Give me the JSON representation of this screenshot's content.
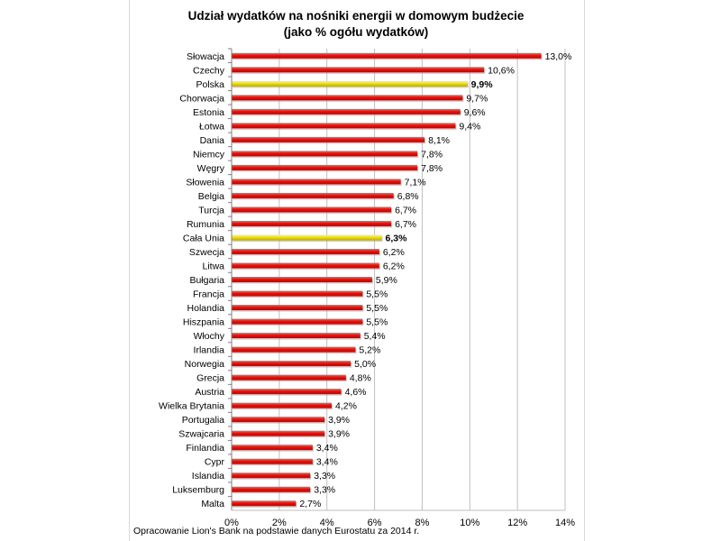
{
  "chart_data": {
    "type": "bar",
    "orientation": "horizontal",
    "title": "Udział wydatków na nośniki energii w domowym budżecie",
    "subtitle": "(jako % ogółu wydatków)",
    "source": "Opracowanie Lion's Bank na podstawie danych Eurostatu za 2014 r.",
    "categories": [
      "Słowacja",
      "Czechy",
      "Polska",
      "Chorwacja",
      "Estonia",
      "Łotwa",
      "Dania",
      "Niemcy",
      "Węgry",
      "Słowenia",
      "Belgia",
      "Turcja",
      "Rumunia",
      "Cała Unia",
      "Szwecja",
      "Litwa",
      "Bułgaria",
      "Francja",
      "Holandia",
      "Hiszpania",
      "Włochy",
      "Irlandia",
      "Norwegia",
      "Grecja",
      "Austria",
      "Wielka Brytania",
      "Portugalia",
      "Szwajcaria",
      "Finlandia",
      "Cypr",
      "Islandia",
      "Luksemburg",
      "Malta"
    ],
    "values": [
      13.0,
      10.6,
      9.9,
      9.7,
      9.6,
      9.4,
      8.1,
      7.8,
      7.8,
      7.1,
      6.8,
      6.7,
      6.7,
      6.3,
      6.2,
      6.2,
      5.9,
      5.5,
      5.5,
      5.5,
      5.4,
      5.2,
      5.0,
      4.8,
      4.6,
      4.2,
      3.9,
      3.9,
      3.4,
      3.4,
      3.3,
      3.3,
      2.7
    ],
    "value_labels": [
      "13,0%",
      "10,6%",
      "9,9%",
      "9,7%",
      "9,6%",
      "9,4%",
      "8,1%",
      "7,8%",
      "7,8%",
      "7,1%",
      "6,8%",
      "6,7%",
      "6,7%",
      "6,3%",
      "6,2%",
      "6,2%",
      "5,9%",
      "5,5%",
      "5,5%",
      "5,5%",
      "5,4%",
      "5,2%",
      "5,0%",
      "4,8%",
      "4,6%",
      "4,2%",
      "3,9%",
      "3,9%",
      "3,4%",
      "3,4%",
      "3,3%",
      "3,3%",
      "2,7%"
    ],
    "highlighted": [
      "Polska",
      "Cała Unia"
    ],
    "xlim": [
      0,
      14
    ],
    "xticks": [
      0,
      2,
      4,
      6,
      8,
      10,
      12,
      14
    ],
    "xtick_labels": [
      "0%",
      "2%",
      "4%",
      "6%",
      "8%",
      "10%",
      "12%",
      "14%"
    ],
    "grid": true,
    "colors": {
      "bar": "#e8130f",
      "highlight": "#f2e01a",
      "grid": "#bfbfbf"
    }
  }
}
